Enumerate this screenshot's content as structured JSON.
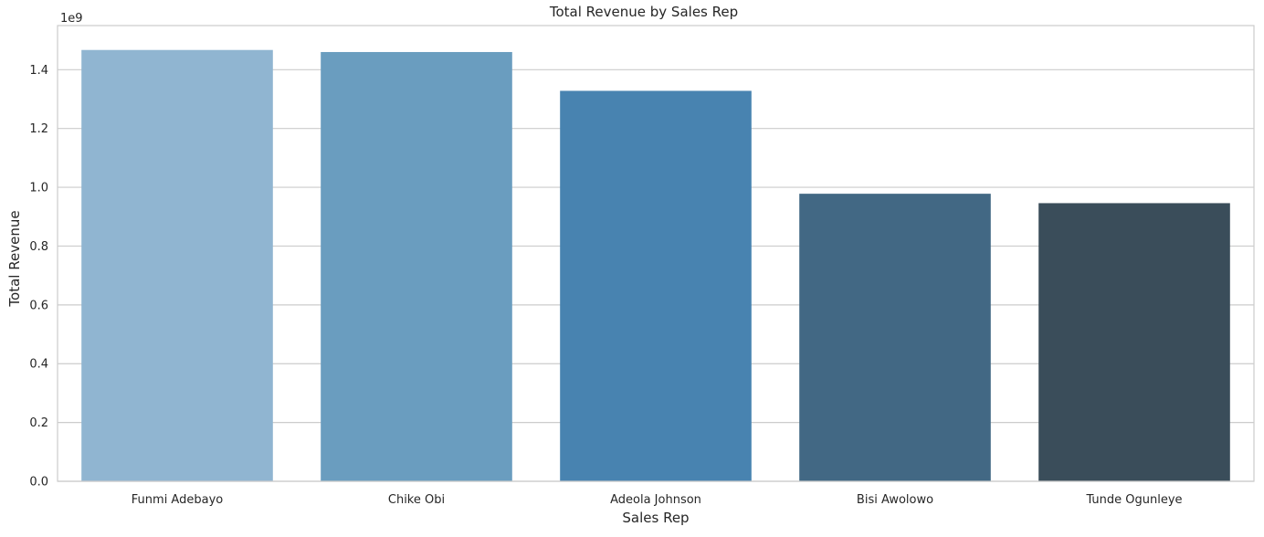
{
  "chart_data": {
    "type": "bar",
    "title": "Total Revenue by Sales Rep",
    "xlabel": "Sales Rep",
    "ylabel": "Total Revenue",
    "y_offset_label": "1e9",
    "y_scale_factor": 1000000000,
    "categories": [
      "Funmi Adebayo",
      "Chike Obi",
      "Adeola Johnson",
      "Bisi Awolowo",
      "Tunde Ogunleye"
    ],
    "values": [
      1467000000,
      1460000000,
      1328000000,
      978000000,
      946000000
    ],
    "colors": [
      "#90b5d1",
      "#6a9dbf",
      "#4883b0",
      "#426884",
      "#3a4d5a"
    ],
    "ylim": [
      0,
      1550000000
    ],
    "yticks": [
      0,
      200000000,
      400000000,
      600000000,
      800000000,
      1000000000,
      1200000000,
      1400000000
    ],
    "ytick_labels": [
      "0.0",
      "0.2",
      "0.4",
      "0.6",
      "0.8",
      "1.0",
      "1.2",
      "1.4"
    ],
    "grid": "horizontal",
    "legend": "none"
  }
}
